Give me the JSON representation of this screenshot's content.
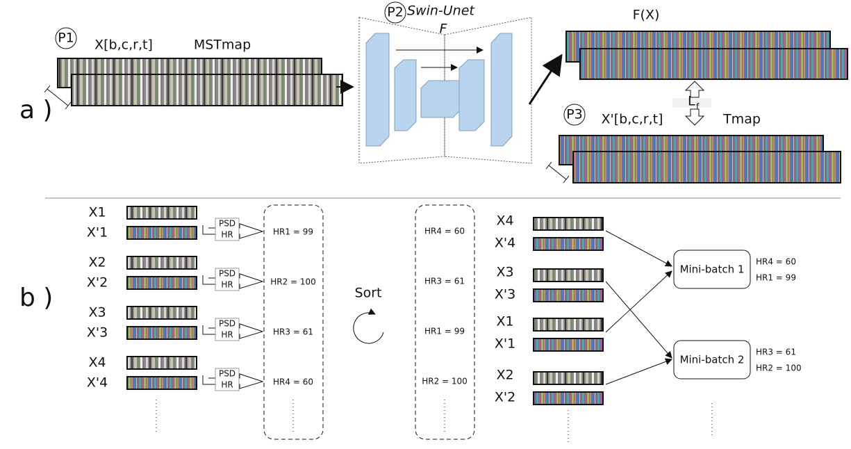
{
  "panel_a": {
    "label": "a )",
    "p1": {
      "marker": "P1",
      "input": "X[b,c,r,t]",
      "map": "MSTmap"
    },
    "p2": {
      "marker": "P2",
      "model": "Swin-Unet",
      "function": "F"
    },
    "output": "F(X)",
    "loss": {
      "symbol": "L",
      "subscript": "f"
    },
    "p3": {
      "marker": "P3",
      "target": "X'[b,c,r,t]",
      "map": "Tmap"
    }
  },
  "panel_b": {
    "label": "b )",
    "transform": {
      "top": "PSD",
      "bottom": "HR"
    },
    "sort": "Sort",
    "samples": [
      {
        "x": "X1",
        "x_prime": "X'1",
        "hr": "HR1 = 99"
      },
      {
        "x": "X2",
        "x_prime": "X'2",
        "hr": "HR2 = 100"
      },
      {
        "x": "X3",
        "x_prime": "X'3",
        "hr": "HR3 = 61"
      },
      {
        "x": "X4",
        "x_prime": "X'4",
        "hr": "HR4 = 60"
      }
    ],
    "sorted": [
      "HR4 = 60",
      "HR3 = 61",
      "HR1 = 99",
      "HR2 = 100"
    ],
    "sorted_samples": [
      {
        "x": "X4",
        "x_prime": "X'4"
      },
      {
        "x": "X3",
        "x_prime": "X'3"
      },
      {
        "x": "X1",
        "x_prime": "X'1"
      },
      {
        "x": "X2",
        "x_prime": "X'2"
      }
    ],
    "mini_batches": [
      {
        "label": "Mini-batch 1",
        "hrs": [
          "HR4 = 60",
          "HR1 = 99"
        ]
      },
      {
        "label": "Mini-batch 2",
        "hrs": [
          "HR3 = 61",
          "HR2 = 100"
        ]
      }
    ]
  }
}
